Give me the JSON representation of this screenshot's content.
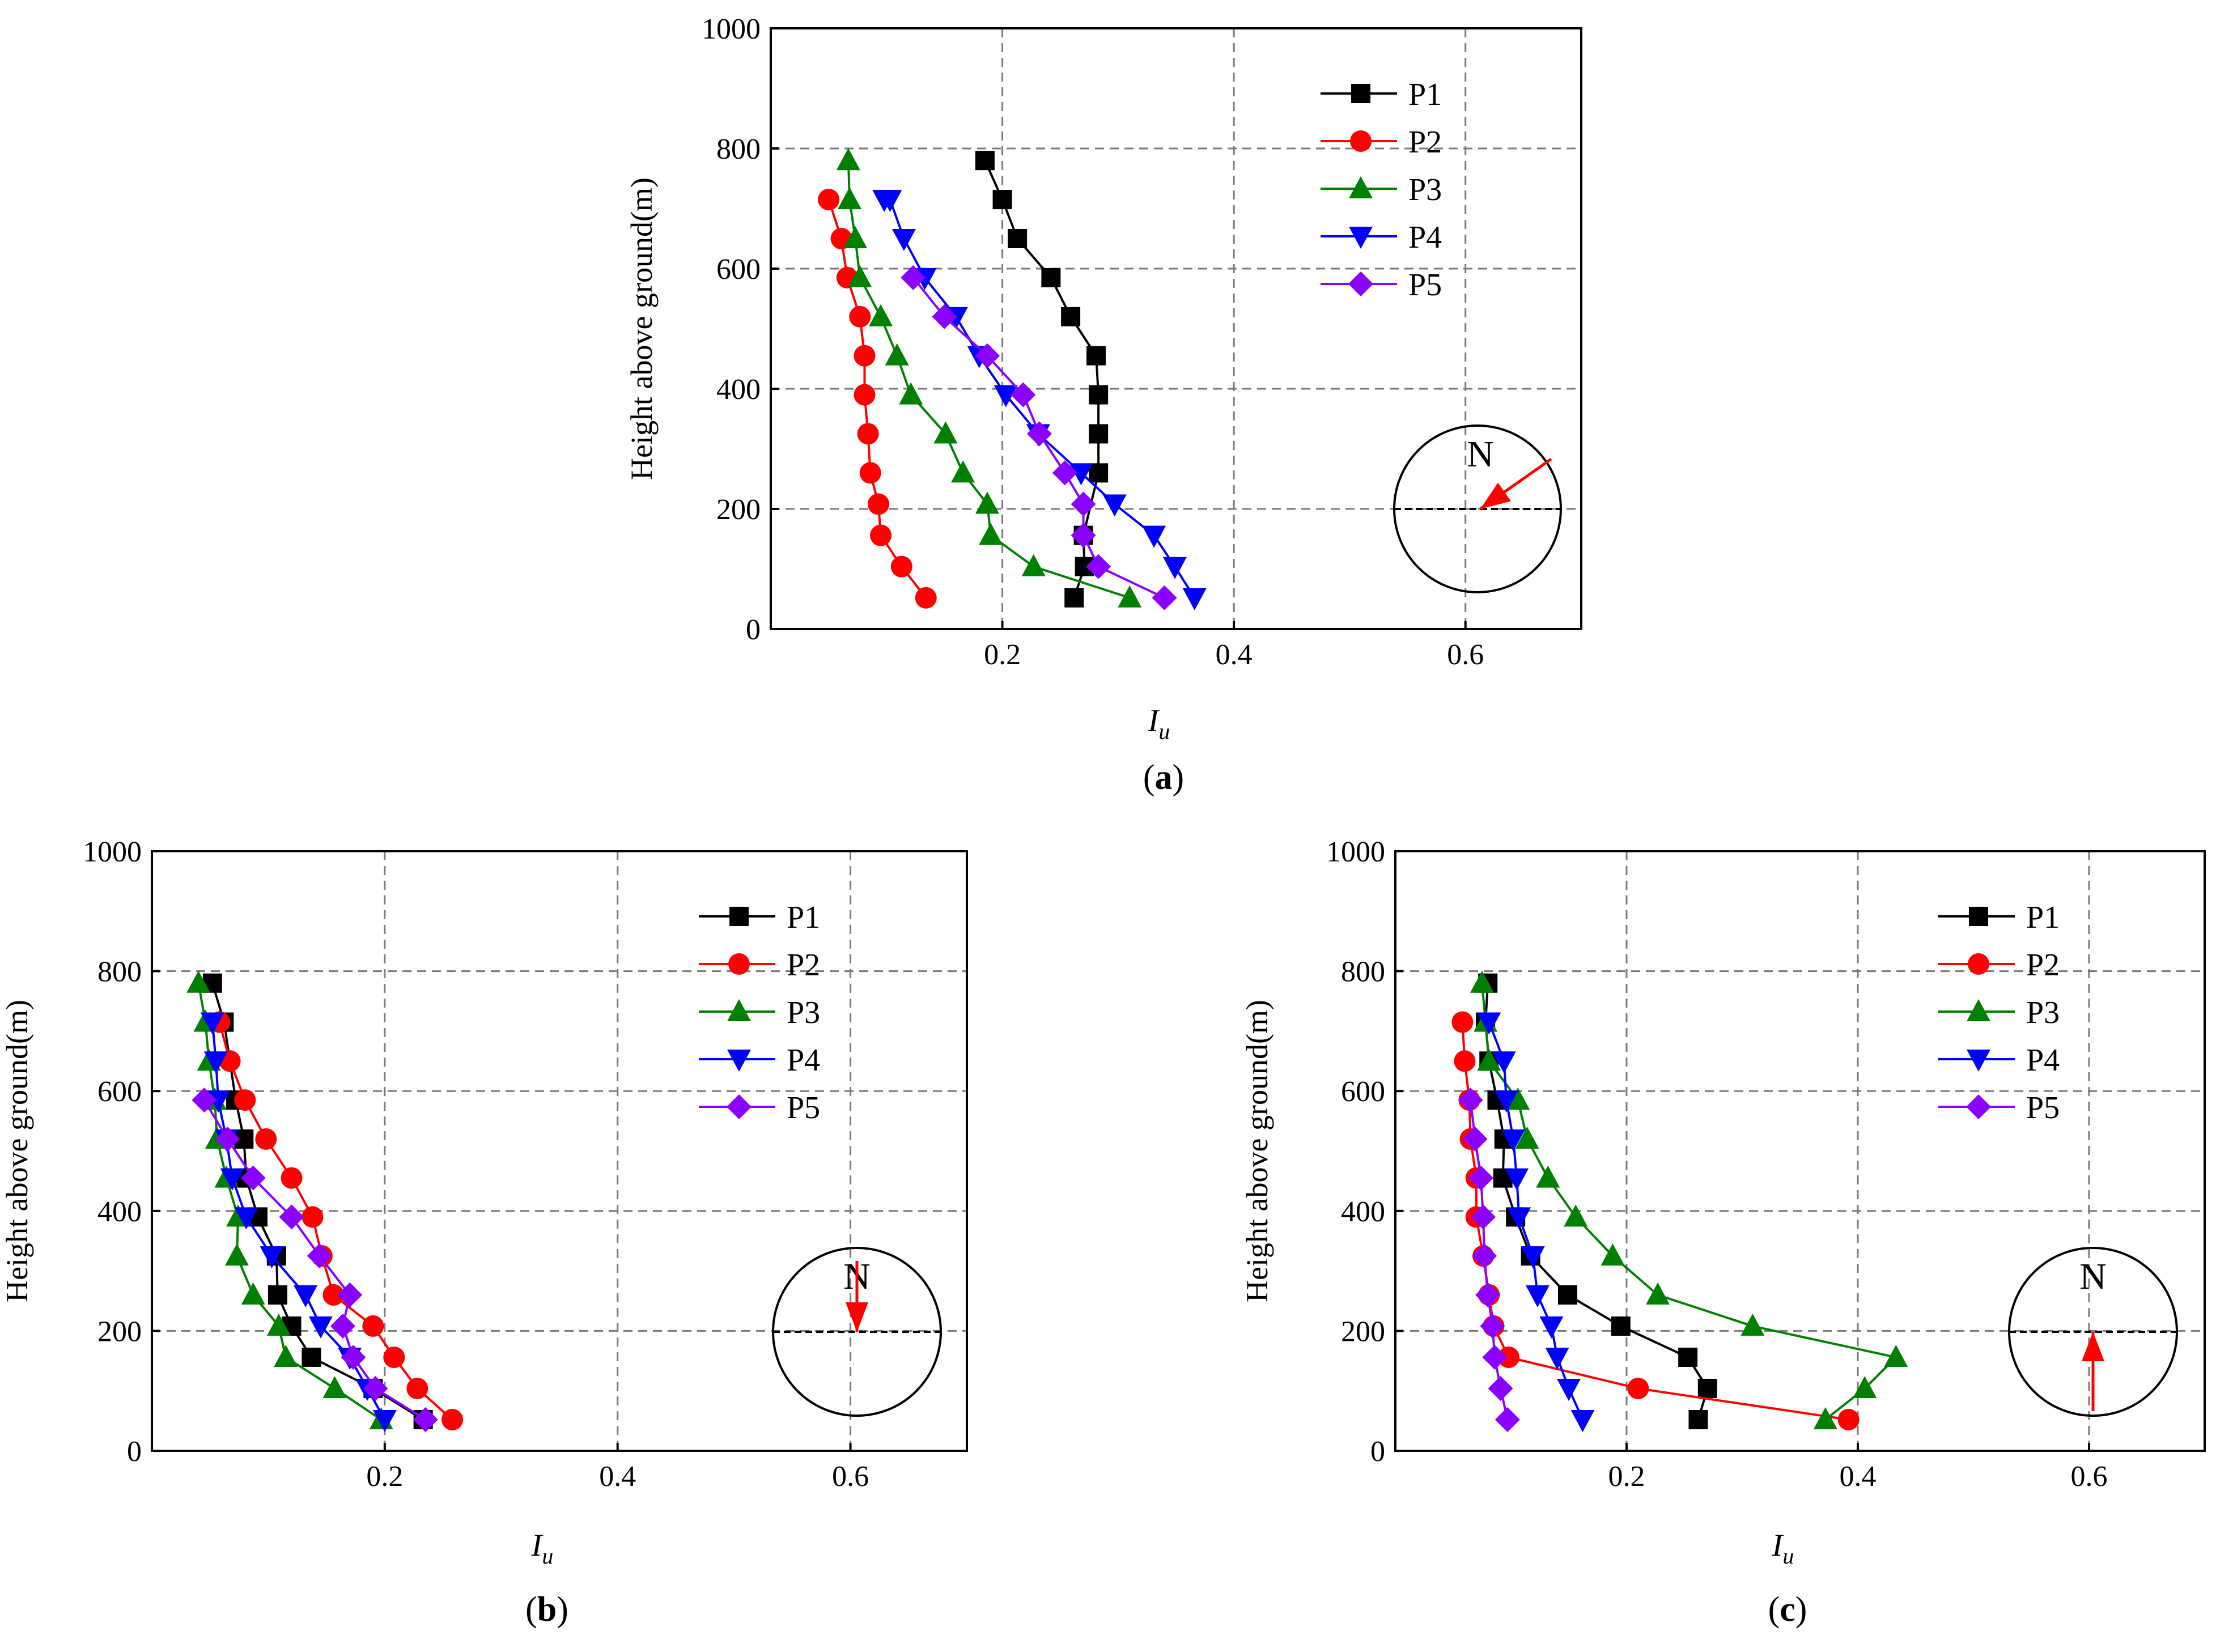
{
  "chart_data": [
    {
      "type": "line",
      "panel": "a",
      "panel_label": {
        "open": "(",
        "letter": "a",
        "close": ")"
      },
      "xlabel": {
        "main": "I",
        "sub": "u"
      },
      "ylabel": "Height above ground(m)",
      "xlim": [
        0.0,
        0.7
      ],
      "ylim": [
        0,
        1000
      ],
      "xticks": [
        {
          "value": 0.2,
          "label": "0.2"
        },
        {
          "value": 0.4,
          "label": "0.4"
        },
        {
          "value": 0.6,
          "label": "0.6"
        }
      ],
      "yticks": [
        {
          "value": 0,
          "label": "0"
        },
        {
          "value": 200,
          "label": "200"
        },
        {
          "value": 400,
          "label": "400"
        },
        {
          "value": 600,
          "label": "600"
        },
        {
          "value": 800,
          "label": "800"
        },
        {
          "value": 1000,
          "label": "1000"
        }
      ],
      "grid": true,
      "legend_position": "top-right",
      "compass": {
        "label": "N",
        "arrow": "from northeast toward center"
      },
      "series": [
        {
          "name": "P1",
          "marker": "square",
          "color": "#000000",
          "x": [
            0.262,
            0.271,
            0.27,
            0.283,
            0.283,
            0.283,
            0.281,
            0.259,
            0.242,
            0.213,
            0.2,
            0.185
          ],
          "y": [
            52,
            104,
            156,
            260,
            325,
            390,
            455,
            520,
            585,
            650,
            715,
            780
          ]
        },
        {
          "name": "P2",
          "marker": "circle",
          "color": "#ff0000",
          "x": [
            0.134,
            0.113,
            0.095,
            0.093,
            0.086,
            0.084,
            0.081,
            0.081,
            0.077,
            0.066,
            0.061,
            0.05
          ],
          "y": [
            52,
            104,
            156,
            208,
            260,
            325,
            390,
            455,
            520,
            585,
            650,
            715
          ]
        },
        {
          "name": "P3",
          "marker": "triangle-up",
          "color": "#008000",
          "x": [
            0.31,
            0.227,
            0.19,
            0.187,
            0.166,
            0.151,
            0.121,
            0.109,
            0.095,
            0.077,
            0.073,
            0.068,
            0.067
          ],
          "y": [
            52,
            104,
            156,
            208,
            260,
            325,
            390,
            455,
            520,
            585,
            650,
            715,
            780
          ]
        },
        {
          "name": "P4",
          "marker": "triangle-down",
          "color": "#0000ff",
          "x": [
            0.366,
            0.349,
            0.331,
            0.297,
            0.268,
            0.231,
            0.203,
            0.18,
            0.16,
            0.133,
            0.115,
            0.103,
            0.098
          ],
          "y": [
            52,
            104,
            156,
            208,
            260,
            325,
            390,
            455,
            520,
            585,
            650,
            715,
            715
          ]
        },
        {
          "name": "P5",
          "marker": "diamond",
          "color": "#8b00ff",
          "x": [
            0.34,
            0.283,
            0.27,
            0.27,
            0.254,
            0.232,
            0.218,
            0.187,
            0.15,
            0.123
          ],
          "y": [
            52,
            104,
            156,
            208,
            260,
            325,
            390,
            455,
            520,
            585
          ]
        }
      ]
    },
    {
      "type": "line",
      "panel": "b",
      "panel_label": {
        "open": "(",
        "letter": "b",
        "close": ")"
      },
      "xlabel": {
        "main": "I",
        "sub": "u"
      },
      "ylabel": "Height above ground(m)",
      "xlim": [
        0.0,
        0.7
      ],
      "ylim": [
        0,
        1000
      ],
      "xticks": [
        {
          "value": 0.2,
          "label": "0.2"
        },
        {
          "value": 0.4,
          "label": "0.4"
        },
        {
          "value": 0.6,
          "label": "0.6"
        }
      ],
      "yticks": [
        {
          "value": 0,
          "label": "0"
        },
        {
          "value": 200,
          "label": "200"
        },
        {
          "value": 400,
          "label": "400"
        },
        {
          "value": 600,
          "label": "600"
        },
        {
          "value": 800,
          "label": "800"
        },
        {
          "value": 1000,
          "label": "1000"
        }
      ],
      "grid": true,
      "legend_position": "top-right",
      "compass": {
        "label": "N",
        "arrow": "from north toward center"
      },
      "series": [
        {
          "name": "P1",
          "marker": "square",
          "color": "#000000",
          "x": [
            0.233,
            0.19,
            0.137,
            0.12,
            0.108,
            0.107,
            0.091,
            0.081,
            0.079,
            0.072,
            0.062,
            0.052
          ],
          "y": [
            52,
            104,
            156,
            208,
            260,
            325,
            390,
            455,
            520,
            585,
            715,
            780
          ]
        },
        {
          "name": "P2",
          "marker": "circle",
          "color": "#ff0000",
          "x": [
            0.258,
            0.228,
            0.208,
            0.19,
            0.156,
            0.146,
            0.138,
            0.12,
            0.098,
            0.08,
            0.067,
            0.058
          ],
          "y": [
            52,
            104,
            156,
            208,
            260,
            325,
            390,
            455,
            520,
            585,
            650,
            715
          ]
        },
        {
          "name": "P3",
          "marker": "triangle-up",
          "color": "#008000",
          "x": [
            0.197,
            0.157,
            0.115,
            0.109,
            0.087,
            0.073,
            0.074,
            0.064,
            0.056,
            0.054,
            0.049,
            0.046,
            0.04
          ],
          "y": [
            52,
            104,
            156,
            208,
            260,
            325,
            390,
            455,
            520,
            585,
            650,
            715,
            780
          ]
        },
        {
          "name": "P4",
          "marker": "triangle-down",
          "color": "#0000ff",
          "x": [
            0.2,
            0.185,
            0.17,
            0.145,
            0.132,
            0.103,
            0.081,
            0.069,
            0.064,
            0.057,
            0.055,
            0.052
          ],
          "y": [
            52,
            104,
            156,
            208,
            260,
            325,
            390,
            455,
            520,
            585,
            650,
            715
          ]
        },
        {
          "name": "P5",
          "marker": "diamond",
          "color": "#8b00ff",
          "x": [
            0.235,
            0.192,
            0.173,
            0.164,
            0.17,
            0.144,
            0.12,
            0.087,
            0.065,
            0.045
          ],
          "y": [
            52,
            104,
            156,
            208,
            260,
            325,
            390,
            455,
            520,
            585
          ]
        }
      ]
    },
    {
      "type": "line",
      "panel": "c",
      "panel_label": {
        "open": "(",
        "letter": "c",
        "close": ")"
      },
      "xlabel": {
        "main": "I",
        "sub": "u"
      },
      "ylabel": "Height above ground(m)",
      "xlim": [
        0.0,
        0.7
      ],
      "ylim": [
        0,
        1000
      ],
      "xticks": [
        {
          "value": 0.2,
          "label": "0.2"
        },
        {
          "value": 0.4,
          "label": "0.4"
        },
        {
          "value": 0.6,
          "label": "0.6"
        }
      ],
      "yticks": [
        {
          "value": 0,
          "label": "0"
        },
        {
          "value": 200,
          "label": "200"
        },
        {
          "value": 400,
          "label": "400"
        },
        {
          "value": 600,
          "label": "600"
        },
        {
          "value": 800,
          "label": "800"
        },
        {
          "value": 1000,
          "label": "1000"
        }
      ],
      "grid": true,
      "legend_position": "top-right",
      "compass": {
        "label": "N",
        "arrow": "from south toward center"
      },
      "series": [
        {
          "name": "P1",
          "marker": "square",
          "color": "#000000",
          "x": [
            0.262,
            0.27,
            0.253,
            0.195,
            0.149,
            0.117,
            0.104,
            0.093,
            0.094,
            0.088,
            0.081,
            0.078,
            0.08
          ],
          "y": [
            52,
            104,
            156,
            208,
            260,
            325,
            390,
            455,
            520,
            585,
            650,
            715,
            780
          ]
        },
        {
          "name": "P2",
          "marker": "circle",
          "color": "#ff0000",
          "x": [
            0.392,
            0.21,
            0.098,
            0.085,
            0.081,
            0.076,
            0.07,
            0.07,
            0.065,
            0.064,
            0.06,
            0.058
          ],
          "y": [
            52,
            104,
            156,
            208,
            260,
            325,
            390,
            455,
            520,
            585,
            650,
            715
          ]
        },
        {
          "name": "P3",
          "marker": "triangle-up",
          "color": "#008000",
          "x": [
            0.372,
            0.406,
            0.433,
            0.309,
            0.227,
            0.188,
            0.156,
            0.132,
            0.114,
            0.106,
            0.081,
            0.078,
            0.075
          ],
          "y": [
            52,
            104,
            156,
            208,
            260,
            325,
            390,
            455,
            520,
            585,
            650,
            715,
            780
          ]
        },
        {
          "name": "P4",
          "marker": "triangle-down",
          "color": "#0000ff",
          "x": [
            0.162,
            0.15,
            0.14,
            0.135,
            0.123,
            0.119,
            0.107,
            0.105,
            0.102,
            0.096,
            0.094,
            0.081
          ],
          "y": [
            52,
            104,
            156,
            208,
            260,
            325,
            390,
            455,
            520,
            585,
            650,
            715
          ]
        },
        {
          "name": "P5",
          "marker": "diamond",
          "color": "#8b00ff",
          "x": [
            0.097,
            0.091,
            0.086,
            0.084,
            0.08,
            0.077,
            0.076,
            0.074,
            0.069,
            0.065
          ],
          "y": [
            52,
            104,
            156,
            208,
            260,
            325,
            390,
            455,
            520,
            585
          ]
        }
      ]
    }
  ]
}
